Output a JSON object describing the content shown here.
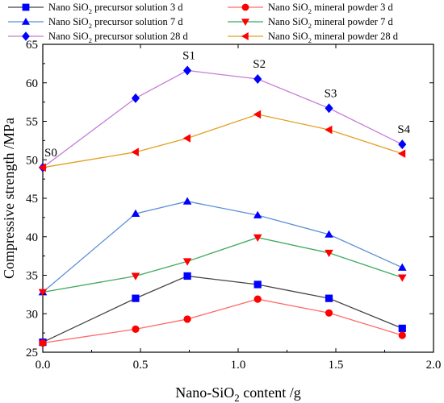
{
  "chart_data": {
    "type": "line",
    "xlabel": "Nano-SiO2 content /g",
    "xlabel_parts": {
      "prefix": "Nano-SiO",
      "sub": "2",
      "suffix": " content /g"
    },
    "ylabel": "Compressive strength /MPa",
    "xlim": [
      0.0,
      2.0
    ],
    "ylim": [
      25,
      65
    ],
    "xticks": [
      0.0,
      0.5,
      1.0,
      1.5,
      2.0
    ],
    "xtick_labels": [
      "0.0",
      "0.5",
      "1.0",
      "1.5",
      "2.0"
    ],
    "yticks": [
      25,
      30,
      35,
      40,
      45,
      50,
      55,
      60,
      65
    ],
    "ytick_labels": [
      "25",
      "30",
      "35",
      "40",
      "45",
      "50",
      "55",
      "60",
      "65"
    ],
    "grid": false,
    "legend_position": "top",
    "x": [
      0.0,
      0.475,
      0.74,
      1.1,
      1.465,
      1.84
    ],
    "point_labels": [
      {
        "text": "S0",
        "x": 0.0,
        "y": 49
      },
      {
        "text": "S1",
        "x": 0.74,
        "y": 61.6
      },
      {
        "text": "S2",
        "x": 1.1,
        "y": 60.5
      },
      {
        "text": "S3",
        "x": 1.465,
        "y": 56.7
      },
      {
        "text": "S4",
        "x": 1.84,
        "y": 52.0
      }
    ],
    "series": [
      {
        "name": "Nano SiO2 precursor solution 3 d",
        "name_parts": {
          "prefix": "Nano SiO",
          "sub": "2",
          "suffix": " precursor solution 3 d"
        },
        "marker": "square",
        "color": "#0000ff",
        "line_color": "#444444",
        "values": [
          26.3,
          32.0,
          34.9,
          33.8,
          32.0,
          28.1
        ]
      },
      {
        "name": "Nano SiO2 mineral powder 3 d",
        "name_parts": {
          "prefix": "Nano SiO",
          "sub": "2",
          "suffix": " mineral powder 3 d"
        },
        "marker": "circle",
        "color": "#ff0000",
        "line_color": "#ff6b6b",
        "values": [
          26.2,
          28.0,
          29.3,
          31.9,
          30.1,
          27.2
        ]
      },
      {
        "name": "Nano SiO2 precursor solution 7 d",
        "name_parts": {
          "prefix": "Nano SiO",
          "sub": "2",
          "suffix": " precursor solution 7 d"
        },
        "marker": "triangle-up",
        "color": "#0000ff",
        "line_color": "#5b8fd6",
        "values": [
          32.8,
          43.0,
          44.6,
          42.8,
          40.3,
          36.0
        ]
      },
      {
        "name": "Nano SiO2 mineral powder 7 d",
        "name_parts": {
          "prefix": "Nano SiO",
          "sub": "2",
          "suffix": " mineral powder 7 d"
        },
        "marker": "triangle-down",
        "color": "#ff0000",
        "line_color": "#3fa85f",
        "values": [
          32.8,
          34.9,
          36.8,
          39.9,
          37.9,
          34.7
        ]
      },
      {
        "name": "Nano SiO2 precursor solution 28 d",
        "name_parts": {
          "prefix": "Nano SiO",
          "sub": "2",
          "suffix": " precursor solution 28 d"
        },
        "marker": "diamond",
        "color": "#0000ff",
        "line_color": "#c77dd8",
        "values": [
          49.0,
          58.0,
          61.6,
          60.5,
          56.7,
          52.0
        ]
      },
      {
        "name": "Nano SiO2 mineral powder 28 d",
        "name_parts": {
          "prefix": "Nano SiO",
          "sub": "2",
          "suffix": " mineral powder 28 d"
        },
        "marker": "triangle-left",
        "color": "#ff0000",
        "line_color": "#e0a020",
        "values": [
          49.0,
          51.0,
          52.8,
          55.9,
          53.9,
          50.8
        ]
      }
    ]
  }
}
